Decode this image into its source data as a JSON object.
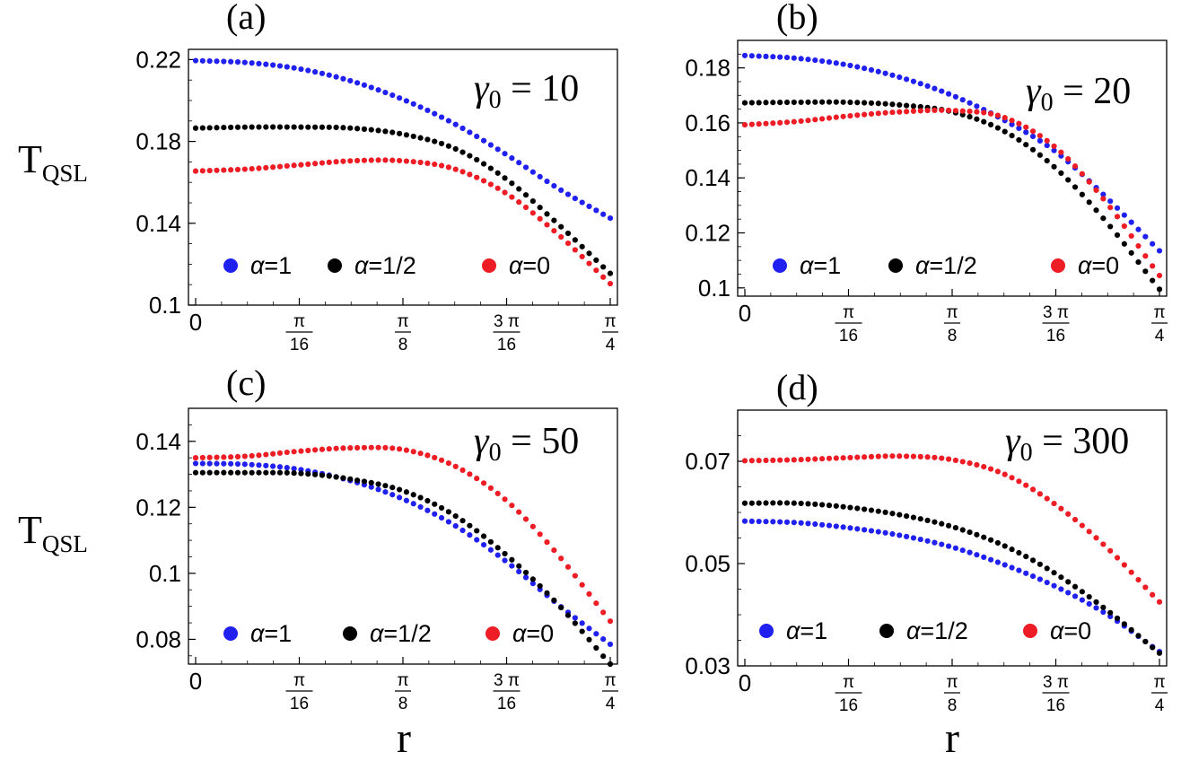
{
  "figure": {
    "y_axis_label": "T",
    "y_axis_label_sub": "QSL",
    "x_axis_label": "r",
    "colors": {
      "alpha_1": "#2020f0",
      "alpha_half": "#000000",
      "alpha_0": "#ee1c24"
    }
  },
  "chart_data": [
    {
      "type": "scatter",
      "panel": "(a)",
      "annotation": {
        "symbol": "γ",
        "subscript": "0",
        "text": " = 10"
      },
      "xlabel": "r",
      "ylabel": "T_QSL",
      "xlim": [
        0,
        0.7854
      ],
      "ylim": [
        0.1,
        0.225
      ],
      "yticks": [
        0.1,
        0.14,
        0.18,
        0.22
      ],
      "ytick_labels": [
        "0.1",
        "0.14",
        "0.18",
        "0.22"
      ],
      "xtick_labels": [
        {
          "num": "0",
          "den": ""
        },
        {
          "num": "π",
          "den": "16"
        },
        {
          "num": "π",
          "den": "8"
        },
        {
          "num": "3 π",
          "den": "16"
        },
        {
          "num": "π",
          "den": "4"
        }
      ],
      "legend_position": "bottom",
      "series": [
        {
          "name": "α=1",
          "color": "#2020f0",
          "label": "α=1",
          "keypoints": [
            [
              0,
              0.2195
            ],
            [
              0.098,
              0.2185
            ],
            [
              0.196,
              0.2155
            ],
            [
              0.295,
              0.2095
            ],
            [
              0.393,
              0.2005
            ],
            [
              0.491,
              0.1885
            ],
            [
              0.589,
              0.1735
            ],
            [
              0.687,
              0.157
            ],
            [
              0.785,
              0.1425
            ]
          ]
        },
        {
          "name": "α=1/2",
          "color": "#000000",
          "label": "α=1/2",
          "keypoints": [
            [
              0,
              0.1865
            ],
            [
              0.098,
              0.187
            ],
            [
              0.196,
              0.187
            ],
            [
              0.295,
              0.1865
            ],
            [
              0.393,
              0.1835
            ],
            [
              0.491,
              0.1765
            ],
            [
              0.589,
              0.1615
            ],
            [
              0.687,
              0.1395
            ],
            [
              0.785,
              0.1155
            ]
          ]
        },
        {
          "name": "α=0",
          "color": "#ee1c24",
          "label": "α=0",
          "keypoints": [
            [
              0,
              0.1655
            ],
            [
              0.098,
              0.1665
            ],
            [
              0.196,
              0.1685
            ],
            [
              0.295,
              0.1705
            ],
            [
              0.393,
              0.1705
            ],
            [
              0.491,
              0.1665
            ],
            [
              0.589,
              0.1545
            ],
            [
              0.687,
              0.1345
            ],
            [
              0.785,
              0.1105
            ]
          ]
        }
      ]
    },
    {
      "type": "scatter",
      "panel": "(b)",
      "annotation": {
        "symbol": "γ",
        "subscript": "0",
        "text": " = 20"
      },
      "xlabel": "r",
      "ylabel": "T_QSL",
      "xlim": [
        0,
        0.7854
      ],
      "ylim": [
        0.097,
        0.19
      ],
      "yticks": [
        0.1,
        0.12,
        0.14,
        0.16,
        0.18
      ],
      "ytick_labels": [
        "0.1",
        "0.12",
        "0.14",
        "0.16",
        "0.18"
      ],
      "xtick_labels": [
        {
          "num": "0",
          "den": ""
        },
        {
          "num": "π",
          "den": "16"
        },
        {
          "num": "π",
          "den": "8"
        },
        {
          "num": "3 π",
          "den": "16"
        },
        {
          "num": "π",
          "den": "4"
        }
      ],
      "legend_position": "bottom",
      "series": [
        {
          "name": "α=1",
          "color": "#2020f0",
          "label": "α=1",
          "keypoints": [
            [
              0,
              0.1845
            ],
            [
              0.098,
              0.1835
            ],
            [
              0.196,
              0.181
            ],
            [
              0.295,
              0.1765
            ],
            [
              0.393,
              0.17
            ],
            [
              0.491,
              0.161
            ],
            [
              0.589,
              0.1495
            ],
            [
              0.687,
              0.1325
            ],
            [
              0.785,
              0.1135
            ]
          ]
        },
        {
          "name": "α=1/2",
          "color": "#000000",
          "label": "α=1/2",
          "keypoints": [
            [
              0,
              0.1673
            ],
            [
              0.098,
              0.1675
            ],
            [
              0.196,
              0.1675
            ],
            [
              0.295,
              0.1665
            ],
            [
              0.393,
              0.164
            ],
            [
              0.491,
              0.157
            ],
            [
              0.589,
              0.1435
            ],
            [
              0.687,
              0.1235
            ],
            [
              0.785,
              0.0995
            ]
          ]
        },
        {
          "name": "α=0",
          "color": "#ee1c24",
          "label": "α=0",
          "keypoints": [
            [
              0,
              0.1593
            ],
            [
              0.098,
              0.1605
            ],
            [
              0.196,
              0.1625
            ],
            [
              0.295,
              0.164
            ],
            [
              0.393,
              0.1645
            ],
            [
              0.491,
              0.162
            ],
            [
              0.589,
              0.151
            ],
            [
              0.687,
              0.1305
            ],
            [
              0.785,
              0.1045
            ]
          ]
        }
      ]
    },
    {
      "type": "scatter",
      "panel": "(c)",
      "annotation": {
        "symbol": "γ",
        "subscript": "0",
        "text": " = 50"
      },
      "xlabel": "r",
      "ylabel": "T_QSL",
      "xlim": [
        0,
        0.7854
      ],
      "ylim": [
        0.0725,
        0.15
      ],
      "yticks": [
        0.08,
        0.1,
        0.12,
        0.14
      ],
      "ytick_labels": [
        "0.08",
        "0.1",
        "0.12",
        "0.14"
      ],
      "xtick_labels": [
        {
          "num": "0",
          "den": ""
        },
        {
          "num": "π",
          "den": "16"
        },
        {
          "num": "π",
          "den": "8"
        },
        {
          "num": "3 π",
          "den": "16"
        },
        {
          "num": "π",
          "den": "4"
        }
      ],
      "legend_position": "bottom",
      "series": [
        {
          "name": "α=1",
          "color": "#2020f0",
          "label": "α=1",
          "keypoints": [
            [
              0,
              0.1333
            ],
            [
              0.098,
              0.133
            ],
            [
              0.196,
              0.1315
            ],
            [
              0.295,
              0.128
            ],
            [
              0.393,
              0.1225
            ],
            [
              0.491,
              0.1145
            ],
            [
              0.589,
              0.1035
            ],
            [
              0.687,
              0.0905
            ],
            [
              0.785,
              0.0785
            ]
          ]
        },
        {
          "name": "α=1/2",
          "color": "#000000",
          "label": "α=1/2",
          "keypoints": [
            [
              0,
              0.1305
            ],
            [
              0.098,
              0.1305
            ],
            [
              0.196,
              0.1303
            ],
            [
              0.295,
              0.1285
            ],
            [
              0.393,
              0.125
            ],
            [
              0.491,
              0.1175
            ],
            [
              0.589,
              0.1055
            ],
            [
              0.687,
              0.0905
            ],
            [
              0.785,
              0.0725
            ]
          ]
        },
        {
          "name": "α=0",
          "color": "#ee1c24",
          "label": "α=0",
          "keypoints": [
            [
              0,
              0.135
            ],
            [
              0.098,
              0.1355
            ],
            [
              0.196,
              0.137
            ],
            [
              0.295,
              0.138
            ],
            [
              0.393,
              0.1375
            ],
            [
              0.491,
              0.1325
            ],
            [
              0.589,
              0.122
            ],
            [
              0.687,
              0.1055
            ],
            [
              0.785,
              0.0855
            ]
          ]
        }
      ]
    },
    {
      "type": "scatter",
      "panel": "(d)",
      "annotation": {
        "symbol": "γ",
        "subscript": "0",
        "text": " = 300"
      },
      "xlabel": "r",
      "ylabel": "T_QSL",
      "xlim": [
        0,
        0.7854
      ],
      "ylim": [
        0.03,
        0.08
      ],
      "yticks": [
        0.03,
        0.05,
        0.07
      ],
      "ytick_labels": [
        "0.03",
        "0.05",
        "0.07"
      ],
      "xtick_labels": [
        {
          "num": "0",
          "den": ""
        },
        {
          "num": "π",
          "den": "16"
        },
        {
          "num": "π",
          "den": "8"
        },
        {
          "num": "3 π",
          "den": "16"
        },
        {
          "num": "π",
          "den": "4"
        }
      ],
      "legend_position": "bottom",
      "series": [
        {
          "name": "α=1",
          "color": "#2020f0",
          "label": "α=1",
          "keypoints": [
            [
              0,
              0.0583
            ],
            [
              0.098,
              0.058
            ],
            [
              0.196,
              0.057
            ],
            [
              0.295,
              0.0555
            ],
            [
              0.393,
              0.0532
            ],
            [
              0.491,
              0.0498
            ],
            [
              0.589,
              0.0455
            ],
            [
              0.687,
              0.04
            ],
            [
              0.785,
              0.0328
            ]
          ]
        },
        {
          "name": "α=1/2",
          "color": "#000000",
          "label": "α=1/2",
          "keypoints": [
            [
              0,
              0.0618
            ],
            [
              0.098,
              0.0618
            ],
            [
              0.196,
              0.061
            ],
            [
              0.295,
              0.0595
            ],
            [
              0.393,
              0.0572
            ],
            [
              0.491,
              0.0535
            ],
            [
              0.589,
              0.048
            ],
            [
              0.687,
              0.0408
            ],
            [
              0.785,
              0.0325
            ]
          ]
        },
        {
          "name": "α=0",
          "color": "#ee1c24",
          "label": "α=0",
          "keypoints": [
            [
              0,
              0.0701
            ],
            [
              0.098,
              0.0703
            ],
            [
              0.196,
              0.0707
            ],
            [
              0.295,
              0.071
            ],
            [
              0.393,
              0.0703
            ],
            [
              0.491,
              0.0675
            ],
            [
              0.589,
              0.0615
            ],
            [
              0.687,
              0.053
            ],
            [
              0.785,
              0.0425
            ]
          ]
        }
      ]
    }
  ]
}
